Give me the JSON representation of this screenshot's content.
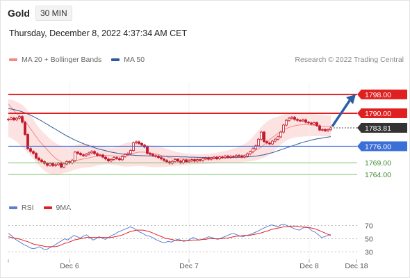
{
  "header": {
    "title": "Gold",
    "timeframe": "30 MIN",
    "datetime": "Thursday, December 8, 2022 4:37:34 AM CET"
  },
  "legend_price": [
    {
      "label": "MA 20 + Bollinger Bands",
      "color": "#f28b86"
    },
    {
      "label": "MA 50",
      "color": "#2e5a9c"
    }
  ],
  "legend_rsi": [
    {
      "label": "RSI",
      "color": "#5b7fd1"
    },
    {
      "label": "9MA",
      "color": "#e02020"
    }
  ],
  "credit": "Research © 2022 Trading Central",
  "colors": {
    "resistance": "#e02020",
    "pivot": "#3b6fd8",
    "support": "#7fbf6a",
    "current": "#333333",
    "arrow": "#2b5ea7",
    "band": "#fde2e2",
    "candle": "#c0182b"
  },
  "chart_data": [
    {
      "type": "candlestick",
      "title": "Gold 30 MIN",
      "x_ticks": [
        "Dec 6",
        "Dec 7",
        "Dec 8",
        "Dec 18"
      ],
      "ylim": [
        1760.8,
        1801.2
      ],
      "levels": [
        {
          "value": 1798.0,
          "label": "1798.00",
          "kind": "resistance"
        },
        {
          "value": 1790.0,
          "label": "1790.00",
          "kind": "resistance"
        },
        {
          "value": 1783.81,
          "label": "1783.81",
          "kind": "current"
        },
        {
          "value": 1776.0,
          "label": "1776.00",
          "kind": "pivot"
        },
        {
          "value": 1769.0,
          "label": "1769.00",
          "kind": "support"
        },
        {
          "value": 1764.0,
          "label": "1764.00",
          "kind": "support"
        }
      ],
      "close": [
        1787.5,
        1788.0,
        1787.2,
        1787.9,
        1788.6,
        1786.2,
        1781.0,
        1775.0,
        1773.8,
        1773.0,
        1771.0,
        1770.2,
        1769.5,
        1768.7,
        1767.9,
        1768.7,
        1767.8,
        1768.2,
        1768.8,
        1767.2,
        1768.5,
        1769.5,
        1768.9,
        1770.0,
        1773.5,
        1773.0,
        1772.4,
        1772.0,
        1772.6,
        1773.2,
        1773.8,
        1772.9,
        1772.1,
        1772.3,
        1771.4,
        1770.6,
        1769.8,
        1770.4,
        1771.2,
        1770.8,
        1770.3,
        1771.6,
        1772.5,
        1772.9,
        1774.2,
        1777.5,
        1777.9,
        1777.2,
        1776.5,
        1775.7,
        1773.0,
        1772.6,
        1772.0,
        1771.8,
        1771.2,
        1770.6,
        1770.0,
        1769.4,
        1768.8,
        1769.6,
        1770.4,
        1769.7,
        1769.0,
        1770.2,
        1769.4,
        1769.8,
        1770.3,
        1769.7,
        1770.3,
        1770.0,
        1770.7,
        1771.1,
        1770.5,
        1771.0,
        1771.4,
        1770.7,
        1771.5,
        1771.2,
        1771.8,
        1771.3,
        1771.7,
        1771.5,
        1772.1,
        1771.9,
        1771.4,
        1771.9,
        1772.8,
        1773.6,
        1775.0,
        1776.2,
        1779.0,
        1782.0,
        1778.0,
        1777.4,
        1777.0,
        1778.2,
        1779.0,
        1780.0,
        1782.0,
        1785.0,
        1787.0,
        1787.9,
        1788.3,
        1787.4,
        1787.0,
        1786.8,
        1787.2,
        1786.2,
        1785.9,
        1785.4,
        1786.0,
        1784.7,
        1782.9,
        1783.1,
        1782.6,
        1783.0,
        1783.81
      ],
      "ma20": [
        1794.0,
        1792.5,
        1791.1,
        1789.9,
        1788.9,
        1787.9,
        1786.6,
        1785.1,
        1783.4,
        1781.8,
        1780.1,
        1778.5,
        1777.1,
        1775.8,
        1774.5,
        1773.2,
        1772.0,
        1770.9,
        1770.1,
        1769.4,
        1769.0,
        1768.9,
        1769.0,
        1769.3,
        1769.6,
        1770.1,
        1770.4,
        1770.6,
        1770.8,
        1771.1,
        1771.4,
        1771.6,
        1771.9,
        1772.0,
        1772.2,
        1772.1,
        1772.1,
        1772.0,
        1771.9,
        1771.8,
        1771.8,
        1771.9,
        1772.1,
        1772.3,
        1772.6,
        1773.0,
        1773.3,
        1773.5,
        1773.5,
        1773.5,
        1773.3,
        1773.1,
        1772.9,
        1772.7,
        1772.5,
        1772.1,
        1771.8,
        1771.5,
        1771.2,
        1771.0,
        1770.8,
        1770.7,
        1770.6,
        1770.6,
        1770.5,
        1770.5,
        1770.4,
        1770.4,
        1770.4,
        1770.4,
        1770.4,
        1770.5,
        1770.6,
        1770.6,
        1770.7,
        1770.8,
        1770.9,
        1771.0,
        1771.1,
        1771.2,
        1771.3,
        1771.4,
        1771.6,
        1771.8,
        1772.0,
        1772.3,
        1772.7,
        1773.2,
        1773.7,
        1774.3,
        1774.9,
        1775.7,
        1776.7,
        1777.8,
        1778.8,
        1779.7,
        1780.6,
        1781.5,
        1782.2,
        1782.9,
        1783.5,
        1784.0,
        1784.4,
        1784.7,
        1784.9,
        1785.1,
        1785.2,
        1785.2,
        1785.1,
        1785.0,
        1784.9,
        1784.8,
        1784.6,
        1784.5,
        1784.5,
        1784.5,
        1784.5
      ],
      "bb_upper": [
        1796.0,
        1795.8,
        1795.4,
        1794.9,
        1794.3,
        1793.6,
        1792.5,
        1791.1,
        1789.3,
        1787.4,
        1785.5,
        1783.9,
        1782.6,
        1781.4,
        1780.3,
        1779.1,
        1778.2,
        1777.4,
        1776.7,
        1776.2,
        1775.9,
        1775.7,
        1775.7,
        1775.9,
        1776.3,
        1776.8,
        1777.1,
        1777.2,
        1777.1,
        1776.9,
        1776.6,
        1776.3,
        1776.1,
        1775.9,
        1775.8,
        1775.6,
        1775.5,
        1775.4,
        1775.5,
        1775.8,
        1776.3,
        1776.8,
        1777.3,
        1777.6,
        1777.7,
        1777.6,
        1777.4,
        1777.2,
        1777.0,
        1776.8,
        1776.6,
        1776.4,
        1776.3,
        1776.2,
        1776.0,
        1775.7,
        1775.3,
        1774.9,
        1774.5,
        1774.1,
        1773.8,
        1773.5,
        1773.3,
        1773.1,
        1772.9,
        1772.8,
        1772.7,
        1772.6,
        1772.6,
        1772.6,
        1772.6,
        1772.7,
        1772.8,
        1772.9,
        1773.1,
        1773.3,
        1773.5,
        1773.8,
        1774.0,
        1774.3,
        1774.6,
        1775.0,
        1775.4,
        1775.9,
        1776.4,
        1777.0,
        1777.8,
        1778.8,
        1780.0,
        1781.4,
        1782.8,
        1784.2,
        1785.4,
        1786.4,
        1787.2,
        1787.8,
        1788.2,
        1788.6,
        1789.0,
        1789.4,
        1789.7,
        1789.9,
        1790.0,
        1790.1,
        1790.1,
        1790.1,
        1790.0,
        1789.9,
        1789.8,
        1789.7,
        1789.6,
        1789.5,
        1789.4,
        1789.3,
        1789.2,
        1789.1,
        1789.0
      ],
      "bb_lower": [
        1780.0,
        1779.5,
        1778.8,
        1777.9,
        1776.8,
        1775.6,
        1774.4,
        1773.2,
        1771.9,
        1770.6,
        1769.2,
        1767.9,
        1766.7,
        1765.6,
        1764.8,
        1764.3,
        1764.0,
        1764.0,
        1764.1,
        1764.3,
        1764.6,
        1764.9,
        1765.3,
        1765.7,
        1766.1,
        1766.5,
        1766.7,
        1766.9,
        1767.0,
        1767.1,
        1767.3,
        1767.5,
        1767.8,
        1768.0,
        1768.2,
        1768.3,
        1768.3,
        1768.2,
        1768.1,
        1767.9,
        1767.7,
        1767.5,
        1767.4,
        1767.4,
        1767.4,
        1767.5,
        1767.6,
        1767.6,
        1767.6,
        1767.5,
        1767.4,
        1767.3,
        1767.2,
        1767.1,
        1767.1,
        1767.1,
        1767.2,
        1767.3,
        1767.4,
        1767.5,
        1767.6,
        1767.7,
        1767.8,
        1767.9,
        1768.0,
        1768.1,
        1768.2,
        1768.3,
        1768.4,
        1768.4,
        1768.5,
        1768.5,
        1768.6,
        1768.7,
        1768.7,
        1768.8,
        1768.9,
        1768.9,
        1769.0,
        1769.0,
        1769.1,
        1769.1,
        1769.2,
        1769.2,
        1769.3,
        1769.4,
        1769.5,
        1769.6,
        1769.8,
        1770.0,
        1770.3,
        1770.7,
        1771.2,
        1771.8,
        1772.6,
        1773.5,
        1774.5,
        1775.6,
        1776.7,
        1777.6,
        1778.4,
        1779.0,
        1779.4,
        1779.7,
        1779.9,
        1780.0,
        1780.1,
        1780.2,
        1780.2,
        1780.3,
        1780.3,
        1780.3,
        1780.3,
        1780.2,
        1780.2,
        1780.2,
        1780.2
      ],
      "ma50": [
        1792.0,
        1791.8,
        1791.6,
        1791.3,
        1791.0,
        1790.6,
        1790.2,
        1789.7,
        1789.2,
        1788.6,
        1788.0,
        1787.4,
        1786.7,
        1786.0,
        1785.3,
        1784.6,
        1783.9,
        1783.2,
        1782.5,
        1781.8,
        1781.1,
        1780.4,
        1779.8,
        1779.2,
        1778.6,
        1778.1,
        1777.6,
        1777.1,
        1776.6,
        1776.2,
        1775.8,
        1775.4,
        1775.0,
        1774.7,
        1774.4,
        1774.1,
        1773.8,
        1773.5,
        1773.3,
        1773.1,
        1772.9,
        1772.7,
        1772.6,
        1772.4,
        1772.3,
        1772.2,
        1772.1,
        1772.1,
        1772.0,
        1772.0,
        1771.9,
        1771.9,
        1771.9,
        1771.8,
        1771.8,
        1771.8,
        1771.7,
        1771.7,
        1771.7,
        1771.6,
        1771.6,
        1771.6,
        1771.5,
        1771.5,
        1771.5,
        1771.4,
        1771.4,
        1771.4,
        1771.3,
        1771.3,
        1771.3,
        1771.2,
        1771.2,
        1771.2,
        1771.2,
        1771.2,
        1771.2,
        1771.2,
        1771.2,
        1771.2,
        1771.2,
        1771.3,
        1771.3,
        1771.3,
        1771.4,
        1771.4,
        1771.5,
        1771.6,
        1771.7,
        1771.8,
        1772.0,
        1772.2,
        1772.4,
        1772.7,
        1773.0,
        1773.3,
        1773.7,
        1774.1,
        1774.5,
        1774.9,
        1775.3,
        1775.7,
        1776.1,
        1776.5,
        1776.9,
        1777.3,
        1777.7,
        1778.0,
        1778.3,
        1778.6,
        1778.9,
        1779.1,
        1779.3,
        1779.5,
        1779.7,
        1779.9,
        1780.1
      ]
    },
    {
      "type": "line",
      "title": "RSI",
      "x_ticks": [
        "Dec 6",
        "Dec 7",
        "Dec 8",
        "Dec 18"
      ],
      "y_ticks": [
        70,
        50,
        30
      ],
      "ylim": [
        20,
        80
      ],
      "series": [
        {
          "name": "RSI",
          "values": [
            58,
            55,
            50,
            47,
            44,
            41,
            39,
            36,
            35,
            36,
            38,
            35,
            33,
            36,
            38,
            41,
            44,
            47,
            50,
            48,
            52,
            55,
            53,
            51,
            54,
            56,
            52,
            48,
            50,
            53,
            51,
            49,
            52,
            55,
            57,
            60,
            62,
            64,
            66,
            68,
            66,
            63,
            60,
            58,
            55,
            54,
            52,
            49,
            47,
            45,
            44,
            46,
            45,
            47,
            49,
            48,
            46,
            47,
            49,
            52,
            50,
            48,
            49,
            51,
            53,
            52,
            50,
            49,
            51,
            53,
            55,
            57,
            58,
            56,
            54,
            53,
            55,
            56,
            58,
            60,
            62,
            65,
            67,
            69,
            71,
            70,
            68,
            71,
            72,
            70,
            68,
            66,
            64,
            63,
            66,
            68,
            66,
            62,
            60,
            56,
            52,
            53,
            55,
            57
          ]
        },
        {
          "name": "9MA",
          "values": [
            53,
            52,
            51,
            50,
            49,
            47,
            46,
            44,
            42,
            41,
            40,
            39,
            38,
            38,
            38,
            38,
            39,
            41,
            43,
            44,
            46,
            48,
            49,
            50,
            51,
            52,
            52,
            52,
            52,
            52,
            52,
            52,
            52,
            52,
            53,
            54,
            55,
            57,
            59,
            61,
            62,
            63,
            63,
            63,
            62,
            61,
            59,
            57,
            55,
            53,
            51,
            50,
            49,
            48,
            47,
            47,
            47,
            47,
            47,
            48,
            48,
            48,
            49,
            49,
            50,
            50,
            50,
            50,
            50,
            51,
            51,
            52,
            53,
            54,
            54,
            55,
            55,
            55,
            56,
            57,
            58,
            59,
            61,
            62,
            64,
            65,
            66,
            67,
            68,
            68,
            69,
            69,
            69,
            68,
            68,
            67,
            67,
            66,
            65,
            63,
            61,
            59,
            57,
            55
          ]
        }
      ]
    }
  ]
}
